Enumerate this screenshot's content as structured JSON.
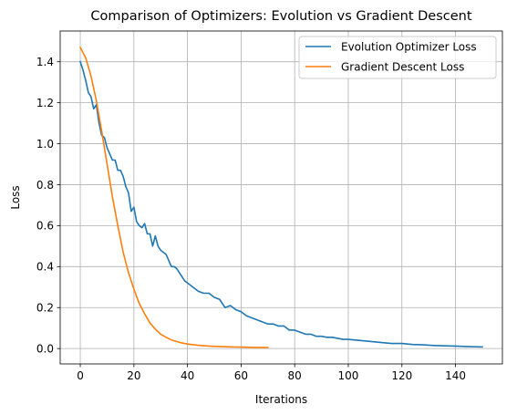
{
  "chart_data": {
    "type": "line",
    "title": "Comparison of Optimizers: Evolution vs Gradient Descent",
    "xlabel": "Iterations",
    "ylabel": "Loss",
    "xlim": [
      -7.5,
      157.5
    ],
    "ylim": [
      -0.075,
      1.55
    ],
    "xticks": [
      0,
      20,
      40,
      60,
      80,
      100,
      120,
      140
    ],
    "yticks": [
      0.0,
      0.2,
      0.4,
      0.6,
      0.8,
      1.0,
      1.2,
      1.4
    ],
    "xtick_labels": [
      "0",
      "20",
      "40",
      "60",
      "80",
      "100",
      "120",
      "140"
    ],
    "ytick_labels": [
      "0.0",
      "0.2",
      "0.4",
      "0.6",
      "0.8",
      "1.0",
      "1.2",
      "1.4"
    ],
    "grid": true,
    "legend_position": "top-right",
    "series": [
      {
        "name": "Evolution Optimizer Loss",
        "color": "#1f77b4",
        "x": [
          0,
          1,
          2,
          3,
          4,
          5,
          6,
          7,
          8,
          9,
          10,
          11,
          12,
          13,
          14,
          15,
          16,
          17,
          18,
          19,
          20,
          21,
          22,
          23,
          24,
          25,
          26,
          27,
          28,
          29,
          30,
          31,
          32,
          33,
          34,
          35,
          36,
          37,
          38,
          39,
          40,
          42,
          44,
          46,
          48,
          50,
          52,
          54,
          56,
          58,
          60,
          62,
          64,
          66,
          68,
          70,
          72,
          74,
          76,
          78,
          80,
          82,
          84,
          86,
          88,
          90,
          92,
          94,
          96,
          98,
          100,
          104,
          108,
          112,
          116,
          120,
          124,
          128,
          132,
          136,
          140,
          144,
          150
        ],
        "y": [
          1.4,
          1.36,
          1.31,
          1.25,
          1.23,
          1.17,
          1.19,
          1.1,
          1.04,
          1.03,
          0.98,
          0.95,
          0.92,
          0.92,
          0.87,
          0.87,
          0.84,
          0.79,
          0.76,
          0.67,
          0.69,
          0.62,
          0.6,
          0.59,
          0.61,
          0.56,
          0.56,
          0.5,
          0.55,
          0.5,
          0.48,
          0.47,
          0.46,
          0.43,
          0.4,
          0.4,
          0.39,
          0.37,
          0.35,
          0.33,
          0.32,
          0.3,
          0.28,
          0.27,
          0.27,
          0.25,
          0.24,
          0.2,
          0.21,
          0.19,
          0.18,
          0.16,
          0.15,
          0.14,
          0.13,
          0.12,
          0.12,
          0.11,
          0.11,
          0.09,
          0.09,
          0.08,
          0.07,
          0.07,
          0.06,
          0.06,
          0.055,
          0.055,
          0.05,
          0.045,
          0.045,
          0.04,
          0.035,
          0.03,
          0.025,
          0.025,
          0.02,
          0.018,
          0.015,
          0.013,
          0.012,
          0.01,
          0.008
        ]
      },
      {
        "name": "Gradient Descent Loss",
        "color": "#ff7f0e",
        "x": [
          0,
          2,
          4,
          6,
          8,
          10,
          12,
          14,
          16,
          18,
          20,
          22,
          24,
          26,
          28,
          30,
          32,
          34,
          36,
          38,
          40,
          44,
          48,
          52,
          56,
          60,
          64,
          70
        ],
        "y": [
          1.47,
          1.42,
          1.33,
          1.21,
          1.06,
          0.9,
          0.74,
          0.6,
          0.47,
          0.37,
          0.29,
          0.22,
          0.17,
          0.125,
          0.095,
          0.07,
          0.055,
          0.042,
          0.034,
          0.027,
          0.022,
          0.016,
          0.012,
          0.01,
          0.008,
          0.007,
          0.006,
          0.005
        ]
      }
    ]
  }
}
